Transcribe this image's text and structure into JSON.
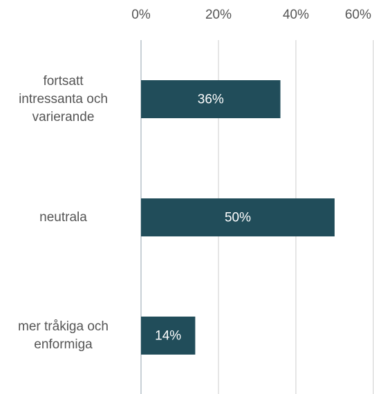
{
  "chart_data": {
    "type": "barh",
    "categories": [
      "fortsatt intressanta och varierande",
      "neutrala",
      "mer tråkiga och enformiga"
    ],
    "values": [
      36,
      50,
      14
    ],
    "value_labels": [
      "36%",
      "50%",
      "14%"
    ],
    "color": "#214d5a",
    "xlim": [
      0,
      60
    ],
    "xticks": [
      {
        "value": 0,
        "label": "0%"
      },
      {
        "value": 20,
        "label": "20%"
      },
      {
        "value": 40,
        "label": "40%"
      },
      {
        "value": 60,
        "label": "60%"
      }
    ],
    "grid": true
  }
}
